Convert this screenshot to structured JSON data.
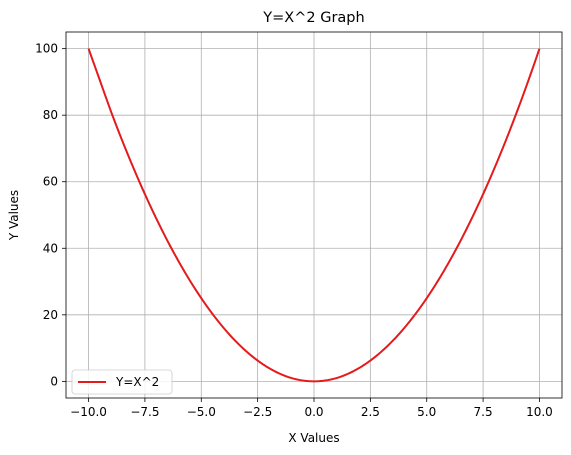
{
  "chart_data": {
    "type": "line",
    "title": "Y=X^2 Graph",
    "xlabel": "X Values",
    "ylabel": "Y Values",
    "xlim": [
      -11,
      11
    ],
    "ylim": [
      -5,
      105
    ],
    "xticks": [
      -10.0,
      -7.5,
      -5.0,
      -2.5,
      0.0,
      2.5,
      5.0,
      7.5,
      10.0
    ],
    "xtick_labels": [
      "−10.0",
      "−7.5",
      "−5.0",
      "−2.5",
      "0.0",
      "2.5",
      "5.0",
      "7.5",
      "10.0"
    ],
    "yticks": [
      0,
      20,
      40,
      60,
      80,
      100
    ],
    "ytick_labels": [
      "0",
      "20",
      "40",
      "60",
      "80",
      "100"
    ],
    "grid": true,
    "legend_position": "lower-left",
    "series": [
      {
        "name": "Y=X^2",
        "color": "#e41a1c",
        "x": [
          -10,
          -9,
          -8,
          -7,
          -6,
          -5,
          -4,
          -3,
          -2,
          -1,
          0,
          1,
          2,
          3,
          4,
          5,
          6,
          7,
          8,
          9,
          10
        ],
        "y": [
          100,
          81,
          64,
          49,
          36,
          25,
          16,
          9,
          4,
          1,
          0,
          1,
          4,
          9,
          16,
          25,
          36,
          49,
          64,
          81,
          100
        ]
      }
    ]
  }
}
